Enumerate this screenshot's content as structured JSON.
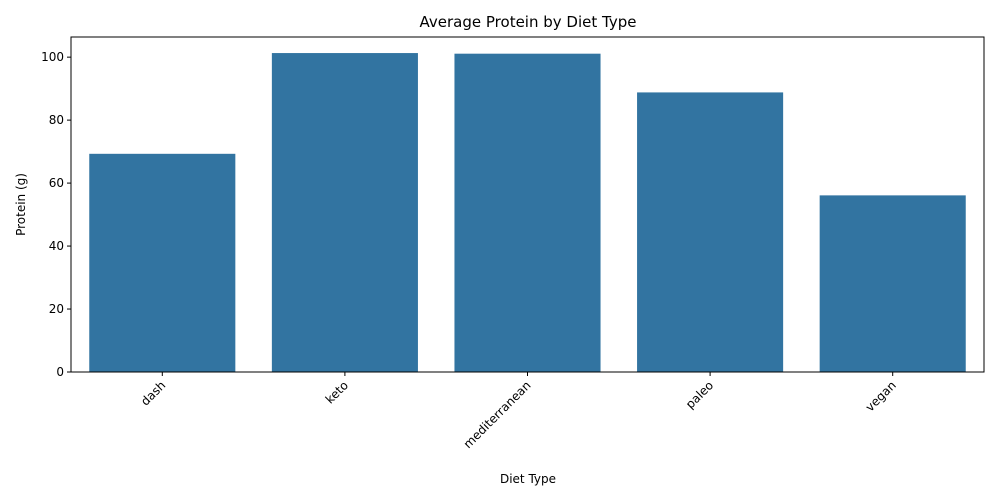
{
  "chart_data": {
    "type": "bar",
    "title": "Average Protein by Diet Type",
    "xlabel": "Diet Type",
    "ylabel": "Protein (g)",
    "categories": [
      "dash",
      "keto",
      "mediterranean",
      "paleo",
      "vegan"
    ],
    "values": [
      69.3,
      101.3,
      101.1,
      88.8,
      56.1
    ],
    "ylim": [
      0,
      106.4
    ],
    "yticks": [
      0,
      20,
      40,
      60,
      80,
      100
    ],
    "grid": false,
    "bar_color": "#3274a1",
    "x_tick_rotation_deg": 45
  }
}
